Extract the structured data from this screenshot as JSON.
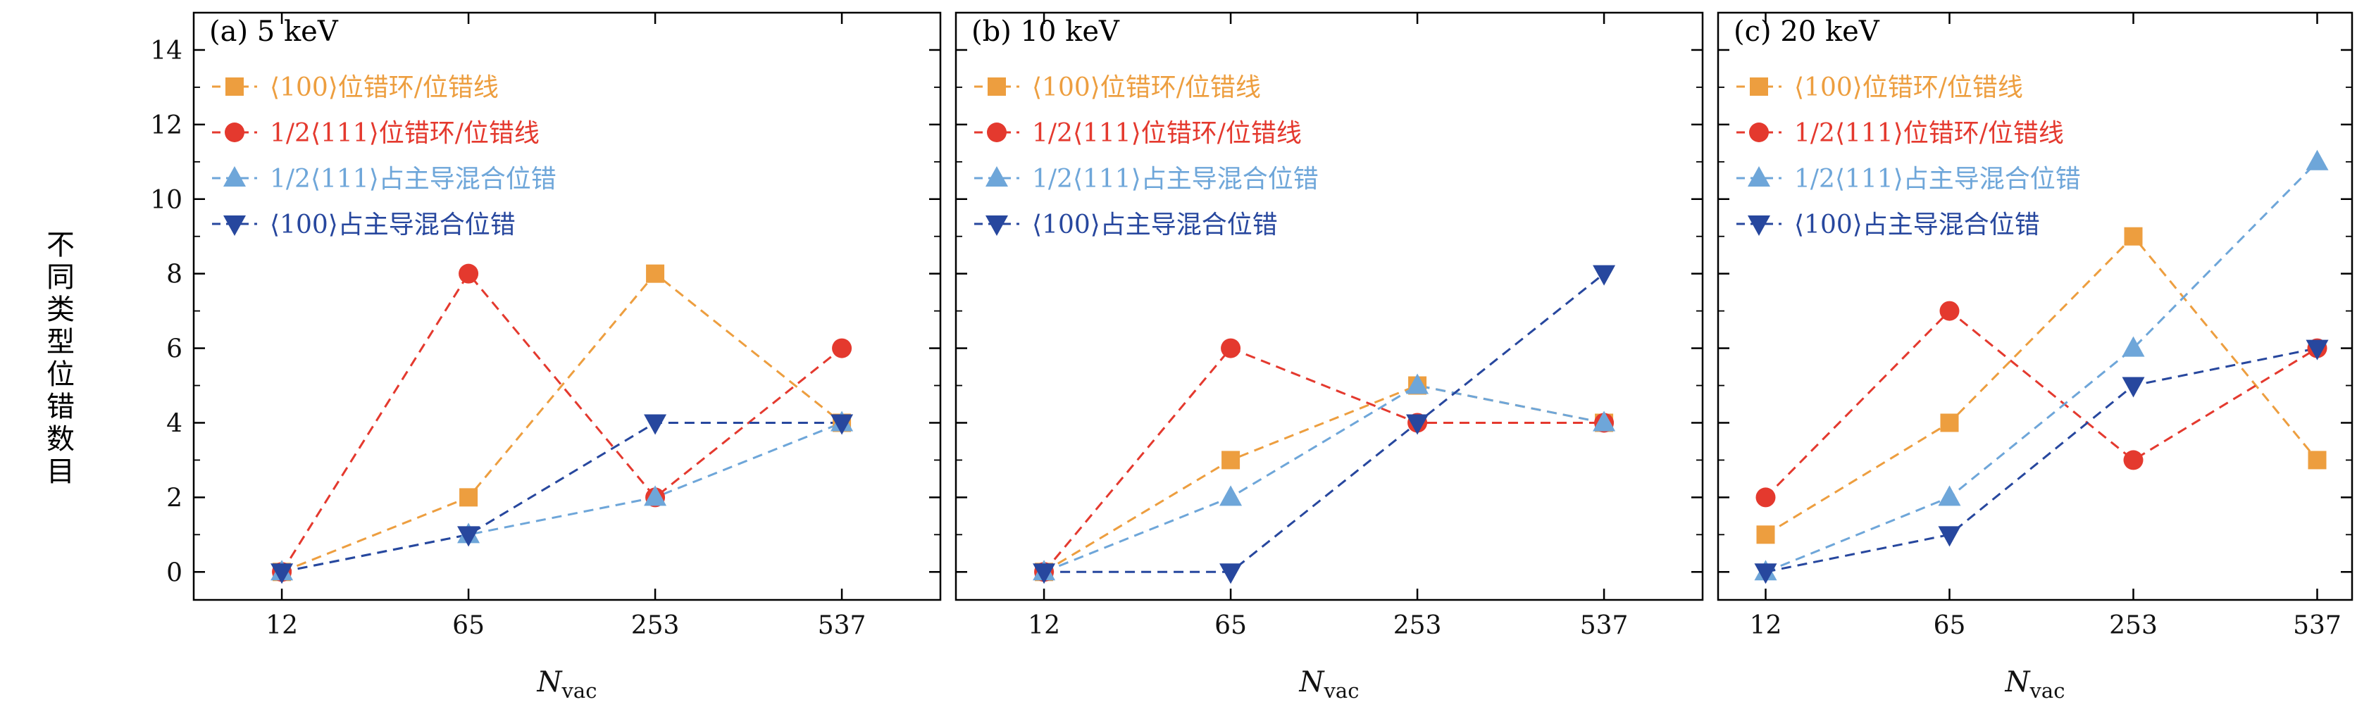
{
  "figure": {
    "ylabel": "不同类型位错数目",
    "xlabel_main": "N",
    "xlabel_sub": "vac",
    "background": "#ffffff",
    "axis_color": "#000000"
  },
  "chart_data": [
    {
      "type": "line",
      "title": "(a) 5 keV",
      "x_categories": [
        "12",
        "65",
        "253",
        "537"
      ],
      "ylim": [
        -0.75,
        15
      ],
      "yticks": [
        0,
        2,
        4,
        6,
        8,
        10,
        12,
        14
      ],
      "grid": false,
      "legend_position": "top-left",
      "line_style": "dashed",
      "series": [
        {
          "name": "⟨100⟩位错环/位错线",
          "marker": "square",
          "color": "#ED9E3F",
          "values": [
            0,
            2,
            8,
            4
          ]
        },
        {
          "name": "1/2⟨111⟩位错环/位错线",
          "marker": "circle",
          "color": "#E4392E",
          "values": [
            0,
            8,
            2,
            6
          ]
        },
        {
          "name": "1/2⟨111⟩占主导混合位错",
          "marker": "triangle-up",
          "color": "#6EA6D9",
          "values": [
            0,
            1,
            2,
            4
          ]
        },
        {
          "name": "⟨100⟩占主导混合位错",
          "marker": "triangle-down",
          "color": "#27479E",
          "values": [
            0,
            1,
            4,
            4
          ]
        }
      ]
    },
    {
      "type": "line",
      "title": "(b) 10 keV",
      "x_categories": [
        "12",
        "65",
        "253",
        "537"
      ],
      "ylim": [
        -0.75,
        15
      ],
      "yticks": [
        0,
        2,
        4,
        6,
        8,
        10,
        12,
        14
      ],
      "grid": false,
      "legend_position": "top-left",
      "line_style": "dashed",
      "series": [
        {
          "name": "⟨100⟩位错环/位错线",
          "marker": "square",
          "color": "#ED9E3F",
          "values": [
            0,
            3,
            5,
            4
          ]
        },
        {
          "name": "1/2⟨111⟩位错环/位错线",
          "marker": "circle",
          "color": "#E4392E",
          "values": [
            0,
            6,
            4,
            4
          ]
        },
        {
          "name": "1/2⟨111⟩占主导混合位错",
          "marker": "triangle-up",
          "color": "#6EA6D9",
          "values": [
            0,
            2,
            5,
            4
          ]
        },
        {
          "name": "⟨100⟩占主导混合位错",
          "marker": "triangle-down",
          "color": "#27479E",
          "values": [
            0,
            0,
            4,
            8
          ]
        }
      ]
    },
    {
      "type": "line",
      "title": "(c) 20 keV",
      "x_categories": [
        "12",
        "65",
        "253",
        "537"
      ],
      "ylim": [
        -0.75,
        15
      ],
      "yticks": [
        0,
        2,
        4,
        6,
        8,
        10,
        12,
        14
      ],
      "grid": false,
      "legend_position": "top-left",
      "line_style": "dashed",
      "series": [
        {
          "name": "⟨100⟩位错环/位错线",
          "marker": "square",
          "color": "#ED9E3F",
          "values": [
            1,
            4,
            9,
            3
          ]
        },
        {
          "name": "1/2⟨111⟩位错环/位错线",
          "marker": "circle",
          "color": "#E4392E",
          "values": [
            2,
            7,
            3,
            6
          ]
        },
        {
          "name": "1/2⟨111⟩占主导混合位错",
          "marker": "triangle-up",
          "color": "#6EA6D9",
          "values": [
            0,
            2,
            6,
            11
          ]
        },
        {
          "name": "⟨100⟩占主导混合位错",
          "marker": "triangle-down",
          "color": "#27479E",
          "values": [
            0,
            1,
            5,
            6
          ]
        }
      ]
    }
  ]
}
